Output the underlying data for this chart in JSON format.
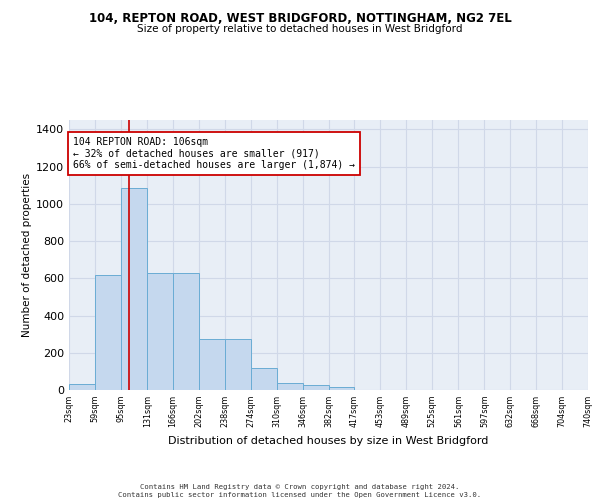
{
  "title_line1": "104, REPTON ROAD, WEST BRIDGFORD, NOTTINGHAM, NG2 7EL",
  "title_line2": "Size of property relative to detached houses in West Bridgford",
  "xlabel": "Distribution of detached houses by size in West Bridgford",
  "ylabel": "Number of detached properties",
  "bin_edges": [
    23,
    59,
    95,
    131,
    166,
    202,
    238,
    274,
    310,
    346,
    382,
    417,
    453,
    489,
    525,
    561,
    597,
    632,
    668,
    704,
    740
  ],
  "bar_heights": [
    30,
    615,
    1085,
    630,
    630,
    275,
    275,
    120,
    40,
    25,
    15,
    0,
    0,
    0,
    0,
    0,
    0,
    0,
    0,
    0
  ],
  "bar_color": "#c5d8ee",
  "bar_edge_color": "#6aacd4",
  "tick_labels": [
    "23sqm",
    "59sqm",
    "95sqm",
    "131sqm",
    "166sqm",
    "202sqm",
    "238sqm",
    "274sqm",
    "310sqm",
    "346sqm",
    "382sqm",
    "417sqm",
    "453sqm",
    "489sqm",
    "525sqm",
    "561sqm",
    "597sqm",
    "632sqm",
    "668sqm",
    "704sqm",
    "740sqm"
  ],
  "red_line_x": 106,
  "annotation_text": "104 REPTON ROAD: 106sqm\n← 32% of detached houses are smaller (917)\n66% of semi-detached houses are larger (1,874) →",
  "annotation_box_color": "#ffffff",
  "annotation_border_color": "#cc0000",
  "ylim": [
    0,
    1450
  ],
  "yticks": [
    0,
    200,
    400,
    600,
    800,
    1000,
    1200,
    1400
  ],
  "background_color": "#e8eef6",
  "grid_color": "#d0d8e8",
  "footer_line1": "Contains HM Land Registry data © Crown copyright and database right 2024.",
  "footer_line2": "Contains public sector information licensed under the Open Government Licence v3.0."
}
